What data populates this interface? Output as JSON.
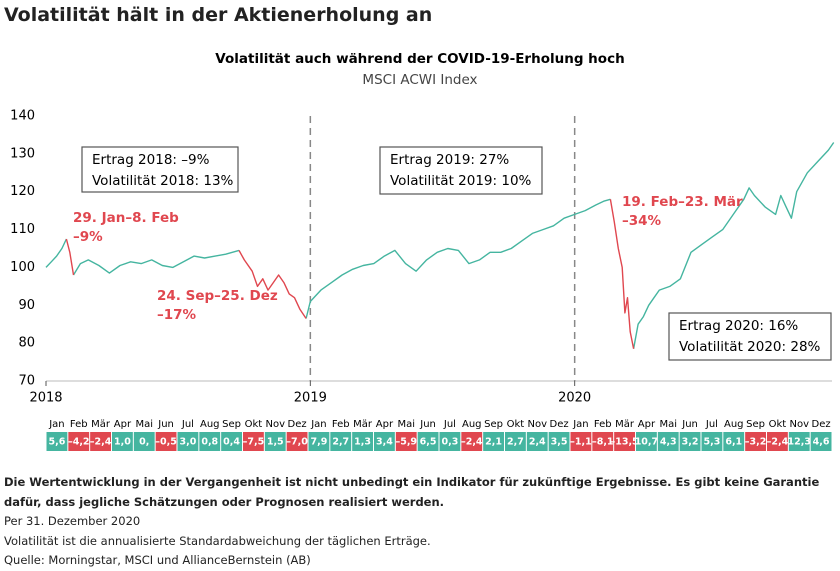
{
  "header": {
    "title": "Volatilität hält in der Aktienerholung an"
  },
  "chart_data": {
    "type": "line",
    "title": "Volatilität auch während der COVID-19-Erholung hoch",
    "subtitle": "MSCI ACWI Index",
    "x": [
      2018.0,
      2018.02,
      2018.04,
      2018.06,
      2018.077,
      2018.09,
      2018.104,
      2018.13,
      2018.16,
      2018.2,
      2018.24,
      2018.28,
      2018.32,
      2018.36,
      2018.4,
      2018.44,
      2018.48,
      2018.52,
      2018.56,
      2018.6,
      2018.64,
      2018.68,
      2018.73,
      2018.75,
      2018.78,
      2018.8,
      2018.82,
      2018.84,
      2018.86,
      2018.88,
      2018.9,
      2018.92,
      2018.94,
      2018.96,
      2018.984,
      2019.0,
      2019.04,
      2019.08,
      2019.12,
      2019.16,
      2019.2,
      2019.24,
      2019.28,
      2019.32,
      2019.36,
      2019.4,
      2019.44,
      2019.48,
      2019.52,
      2019.56,
      2019.6,
      2019.64,
      2019.68,
      2019.72,
      2019.76,
      2019.8,
      2019.84,
      2019.88,
      2019.92,
      2019.96,
      2020.0,
      2020.04,
      2020.08,
      2020.11,
      2020.135,
      2020.15,
      2020.165,
      2020.18,
      2020.19,
      2020.2,
      2020.21,
      2020.223,
      2020.24,
      2020.26,
      2020.28,
      2020.3,
      2020.32,
      2020.36,
      2020.4,
      2020.44,
      2020.48,
      2020.52,
      2020.56,
      2020.6,
      2020.64,
      2020.66,
      2020.68,
      2020.72,
      2020.76,
      2020.78,
      2020.8,
      2020.82,
      2020.84,
      2020.88,
      2020.92,
      2020.96,
      2020.98
    ],
    "series": [
      {
        "color": "#45b5a0",
        "values": [
          100,
          101.5,
          103,
          105,
          107.5,
          null,
          98,
          101,
          102,
          100.5,
          98.5,
          100.5,
          101.5,
          101,
          102,
          100.5,
          100,
          101.5,
          103,
          102.5,
          103,
          103.5,
          104.5,
          null,
          null,
          null,
          null,
          null,
          null,
          null,
          null,
          null,
          null,
          null,
          86.5,
          91,
          94,
          96,
          98,
          99.5,
          100.5,
          101,
          103,
          104.5,
          101,
          99,
          102,
          104,
          105,
          104.5,
          101,
          102,
          104,
          104,
          105,
          107,
          109,
          110,
          111,
          113,
          114,
          115,
          116.5,
          117.5,
          118,
          null,
          null,
          null,
          null,
          null,
          null,
          78.5,
          85,
          87,
          90,
          92,
          94,
          95,
          97,
          104,
          106,
          108,
          110,
          114,
          118,
          121,
          119,
          116,
          114,
          119,
          116,
          113,
          120,
          125,
          128,
          131,
          133
        ]
      },
      {
        "color": "#e0474f",
        "values": [
          null,
          null,
          null,
          null,
          107.5,
          104,
          98,
          null,
          null,
          null,
          null,
          null,
          null,
          null,
          null,
          null,
          null,
          null,
          null,
          null,
          null,
          null,
          104.5,
          102,
          99,
          95,
          97,
          94,
          96,
          98,
          96,
          93,
          92,
          89,
          86.5,
          null,
          null,
          null,
          null,
          null,
          null,
          null,
          null,
          null,
          null,
          null,
          null,
          null,
          null,
          null,
          null,
          null,
          null,
          null,
          null,
          null,
          null,
          null,
          null,
          null,
          null,
          null,
          null,
          null,
          118,
          112,
          105,
          100,
          88,
          92,
          83,
          78.5,
          null,
          null,
          null,
          null,
          null,
          null,
          null,
          null,
          null,
          null,
          null,
          null,
          null,
          null,
          null,
          null,
          null,
          null,
          null,
          null,
          null,
          null,
          null,
          null,
          null
        ]
      }
    ],
    "xlim": [
      2018,
      2021
    ],
    "xticks": [
      2018,
      2019,
      2020
    ],
    "ylim": [
      70,
      140
    ],
    "yticks": [
      70,
      80,
      90,
      100,
      110,
      120,
      130,
      140
    ],
    "year_dividers": true,
    "annotations": [
      {
        "style": "box",
        "lines": [
          "Ertrag 2018:  –9%",
          "Volatilität 2018:  13%"
        ]
      },
      {
        "style": "box",
        "lines": [
          "Ertrag 2019: 27%",
          "Volatilität 2019: 10%"
        ]
      },
      {
        "style": "box",
        "lines": [
          "Ertrag 2020: 16%",
          "Volatilität 2020: 28%"
        ]
      },
      {
        "style": "red",
        "lines": [
          "29. Jan–8. Feb",
          "–9%"
        ]
      },
      {
        "style": "red",
        "lines": [
          "24. Sep–25. Dez",
          "–17%"
        ]
      },
      {
        "style": "red",
        "lines": [
          "19. Feb–23. Mär",
          "–34%"
        ]
      }
    ],
    "monthly_returns": {
      "positive_color": "#45b5a0",
      "negative_color": "#e0474f",
      "categories": [
        "Jan",
        "Feb",
        "Mär",
        "Apr",
        "Mai",
        "Jun",
        "Jul",
        "Aug",
        "Sep",
        "Okt",
        "Nov",
        "Dez",
        "Jan",
        "Feb",
        "Mär",
        "Apr",
        "Mai",
        "Jun",
        "Jul",
        "Aug",
        "Sep",
        "Okt",
        "Nov",
        "Dez",
        "Jan",
        "Feb",
        "Mär",
        "Apr",
        "Mai",
        "Jun",
        "Jul",
        "Aug",
        "Sep",
        "Okt",
        "Nov",
        "Dez"
      ],
      "values": [
        5.6,
        -4.2,
        -2.4,
        1.0,
        0,
        -0.5,
        3.0,
        0.8,
        0.4,
        -7.5,
        1.5,
        -7.0,
        7.9,
        2.7,
        1.3,
        3.4,
        -5.9,
        6.5,
        0.3,
        -2.4,
        2.1,
        2.7,
        2.4,
        3.5,
        -1.1,
        -8.1,
        -13.5,
        10.7,
        4.3,
        3.2,
        5.3,
        6.1,
        -3.2,
        -2.4,
        12.3,
        4.6
      ],
      "value_labels": [
        "5,6",
        "–4,2",
        "–2,4",
        "1,0",
        "0,",
        "–0,5",
        "3,0",
        "0,8",
        "0,4",
        "–7,5",
        "1,5",
        "–7,0",
        "7,9",
        "2,7",
        "1,3",
        "3,4",
        "–5,9",
        "6,5",
        "0,3",
        "–2,4",
        "2,1",
        "2,7",
        "2,4",
        "3,5",
        "–1,1",
        "–8,1",
        "–13,5",
        "10,7",
        "4,3",
        "3,2",
        "5,3",
        "6,1",
        "–3,2",
        "–2,4",
        "12,3",
        "4,6"
      ]
    }
  },
  "footer": {
    "disclaimer": "Die Wertentwicklung in der Vergangenheit ist nicht unbedingt ein Indikator für zukünftige Ergebnisse. Es gibt keine Garantie dafür, dass jegliche Schätzungen oder Prognosen realisiert werden.",
    "notes": [
      "Per 31. Dezember 2020",
      "Volatilität ist die annualisierte Standardabweichung der täglichen Erträge.",
      "Quelle: Morningstar, MSCI und AllianceBernstein (AB)"
    ]
  }
}
